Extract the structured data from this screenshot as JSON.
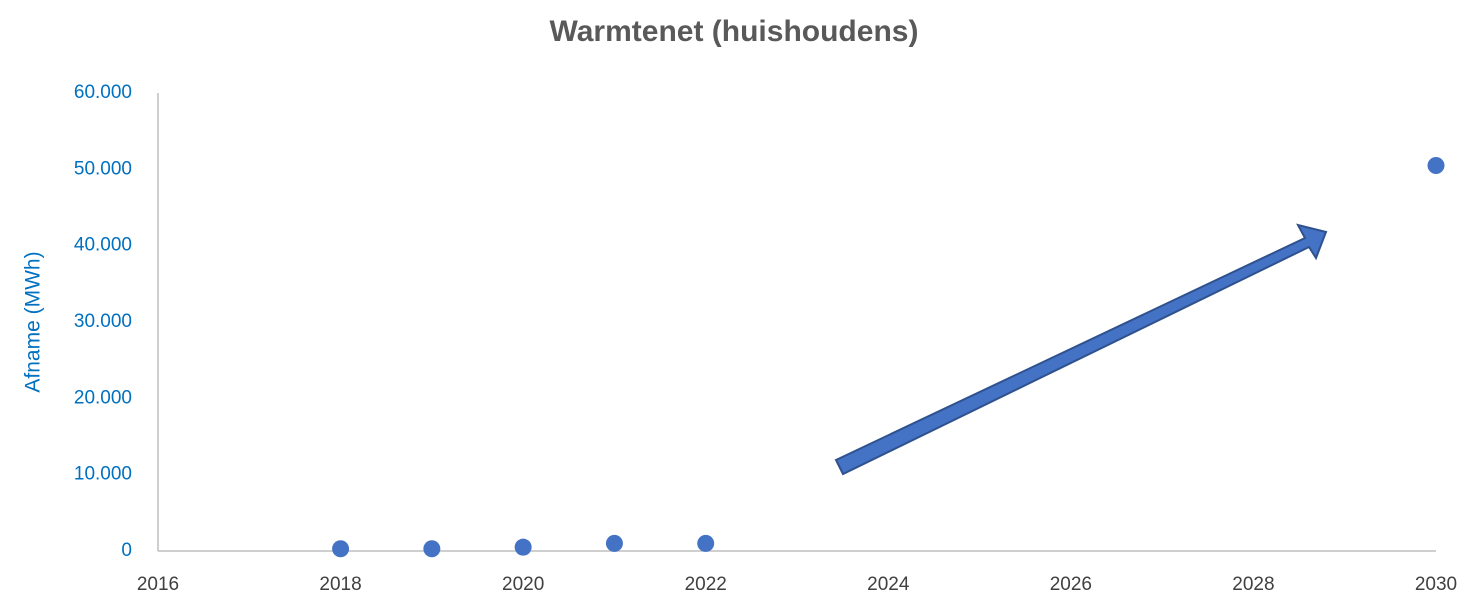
{
  "chart_data": {
    "type": "scatter",
    "title": "Warmtenet (huishoudens)",
    "y_label": "Afname (MWh)",
    "series": [
      {
        "color": "#4472c4",
        "x": [
          2018,
          2019,
          2020,
          2021,
          2022,
          2030
        ],
        "values": [
          300,
          300,
          500,
          1000,
          1000,
          50500
        ]
      }
    ],
    "xlim": [
      2016,
      2030
    ],
    "xticks": [
      2016,
      2018,
      2020,
      2022,
      2024,
      2026,
      2028,
      2030
    ],
    "ylim": [
      0,
      60000
    ],
    "yticks": [
      0,
      {
        "value": 10000,
        "label": "10.000"
      },
      {
        "value": 20000,
        "label": "20.000"
      },
      {
        "value": 30000,
        "label": "30.000"
      },
      {
        "value": 40000,
        "label": "40.000"
      },
      {
        "value": 50000,
        "label": "50.000"
      },
      {
        "value": 60000,
        "label": "60.000"
      }
    ],
    "grid": false
  }
}
